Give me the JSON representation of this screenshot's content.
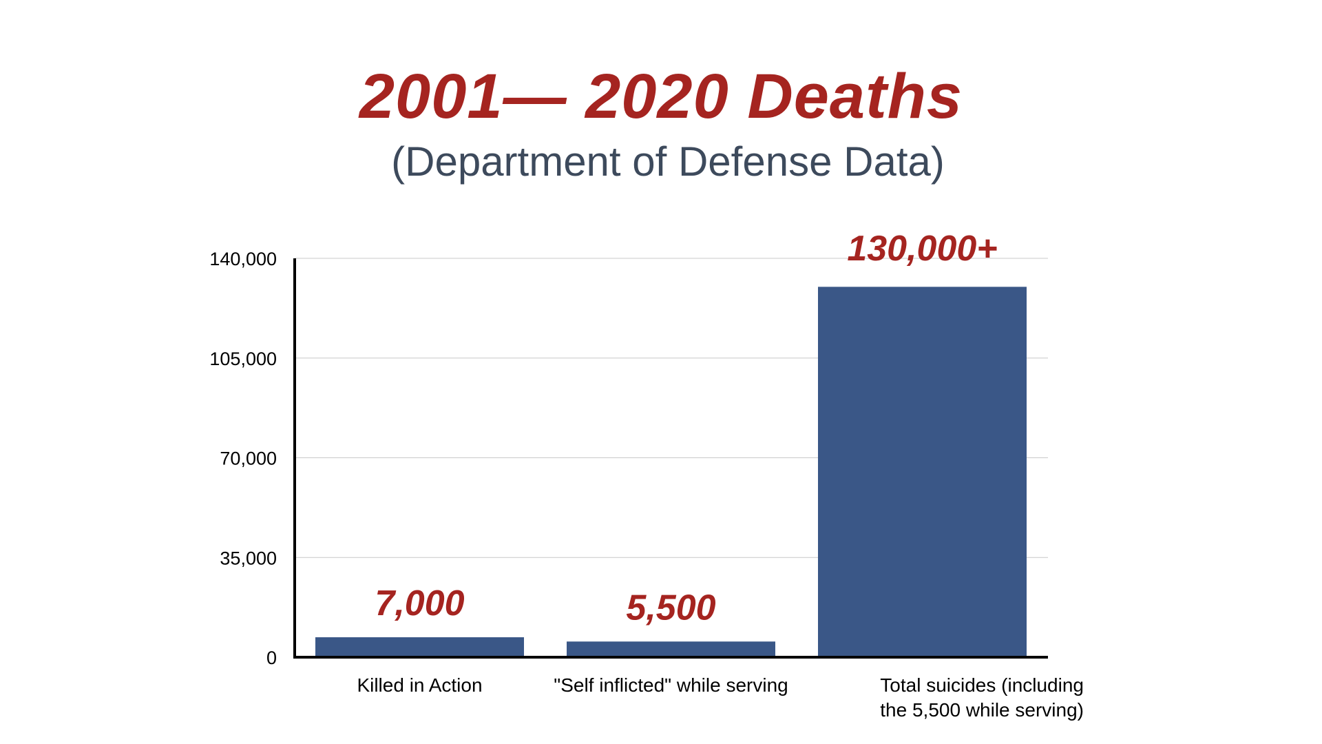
{
  "chart_data": {
    "type": "bar",
    "title": "2001— 2020 Deaths",
    "subtitle": "(Department of Defense Data)",
    "categories": [
      [
        "Killed in Action"
      ],
      [
        "\"Self inflicted\" while serving"
      ],
      [
        "Total suicides (including",
        "the 5,500 while serving)"
      ]
    ],
    "values": [
      7000,
      5500,
      130000
    ],
    "data_labels": [
      "7,000",
      "5,500",
      "130,000+"
    ],
    "ylim": [
      0,
      140000
    ],
    "yticks": [
      0,
      35000,
      70000,
      105000,
      140000
    ],
    "ytick_labels": [
      "0",
      "35,000",
      "70,000",
      "105,000",
      "140,000"
    ],
    "grid": true,
    "colors": {
      "bar": "#3a5787",
      "label": "#a52420",
      "grid": "#c8c8c8",
      "axis": "#000000"
    }
  }
}
